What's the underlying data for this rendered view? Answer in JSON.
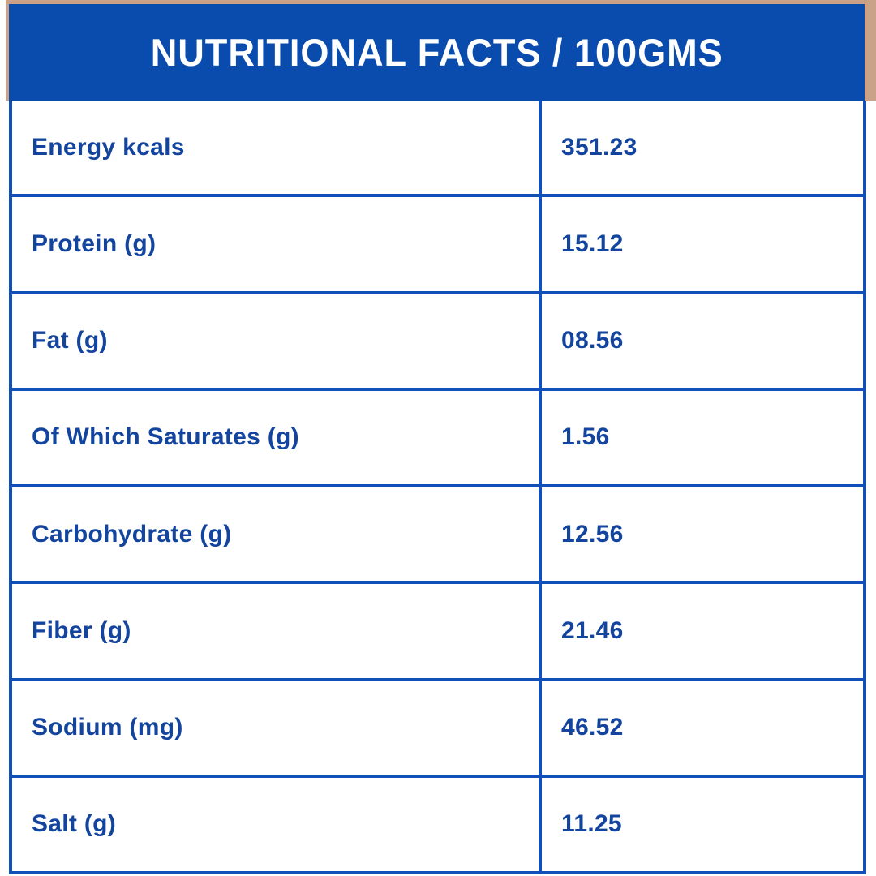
{
  "header": {
    "title": "NUTRITIONAL FACTS / 100GMS"
  },
  "table": {
    "columns": [
      "nutrient",
      "amount_per_100g"
    ],
    "rows": [
      {
        "label": "Energy kcals",
        "value": "351.23"
      },
      {
        "label": "Protein (g)",
        "value": "15.12"
      },
      {
        "label": "Fat (g)",
        "value": "08.56"
      },
      {
        "label": "Of Which Saturates (g)",
        "value": "1.56"
      },
      {
        "label": "Carbohydrate (g)",
        "value": "12.56"
      },
      {
        "label": "Fiber (g)",
        "value": "21.46"
      },
      {
        "label": "Sodium (mg)",
        "value": "46.52"
      },
      {
        "label": "Salt (g)",
        "value": "11.25"
      }
    ]
  },
  "colors": {
    "header_background": "#0a4cae",
    "table_border": "#1150b8",
    "text_blue": "#13459e",
    "backing_tan": "#c9a287",
    "page_background": "#ffffff",
    "header_text": "#ffffff"
  }
}
